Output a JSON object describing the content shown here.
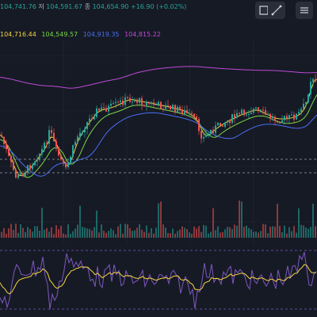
{
  "legend": {
    "high_value": "104,741.76",
    "low_label": "저",
    "low_value": "104,591.67",
    "close_label": "종",
    "close_value": "104,654.90",
    "change": "+16.90 (+0.02%)"
  },
  "moving_averages": [
    {
      "value": "104,716.44",
      "color": "#f5d442"
    },
    {
      "value": "104,549.57",
      "color": "#7cd64a"
    },
    {
      "value": "104,919.35",
      "color": "#4a6ff5"
    },
    {
      "value": "104,815.22",
      "color": "#c04ad6"
    }
  ],
  "toolbar": {
    "icons": [
      "layout-icon",
      "trend-line-icon",
      "settings-icon"
    ]
  },
  "colors": {
    "background": "#161a25",
    "up": "#26a69a",
    "down": "#ef5350",
    "oscillator": "#7e57c2",
    "signal": "#f5d442"
  }
}
